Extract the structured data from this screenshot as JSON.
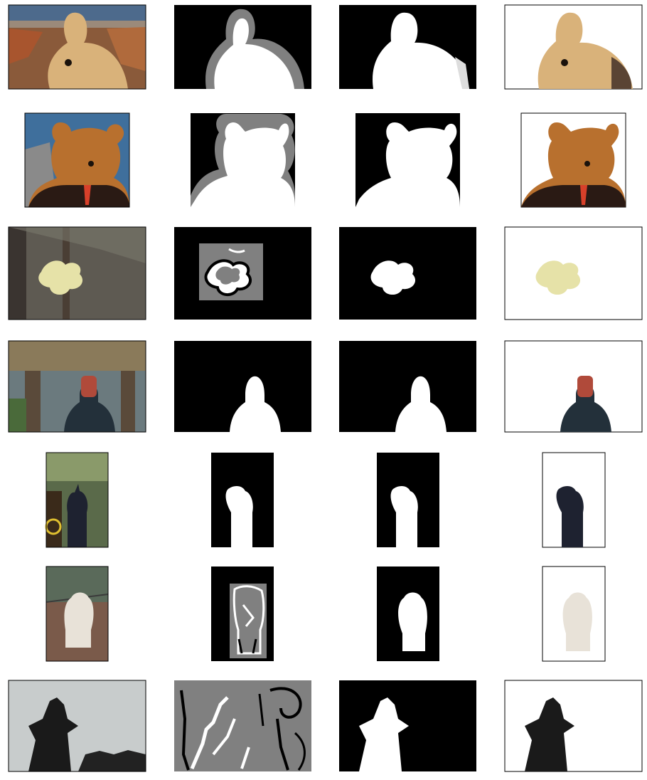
{
  "figure": {
    "columns": [
      "input-image",
      "trimap",
      "predicted-alpha",
      "composite-on-white"
    ],
    "rows": [
      {
        "subject": "bunny",
        "trimap_style": "band"
      },
      {
        "subject": "teddy-bear",
        "trimap_style": "band"
      },
      {
        "subject": "flower",
        "trimap_style": "scribble"
      },
      {
        "subject": "masked-person",
        "trimap_style": "none"
      },
      {
        "subject": "photographer",
        "trimap_style": "none"
      },
      {
        "subject": "dog",
        "trimap_style": "scribble"
      },
      {
        "subject": "pagoda",
        "trimap_style": "scribble"
      }
    ]
  }
}
